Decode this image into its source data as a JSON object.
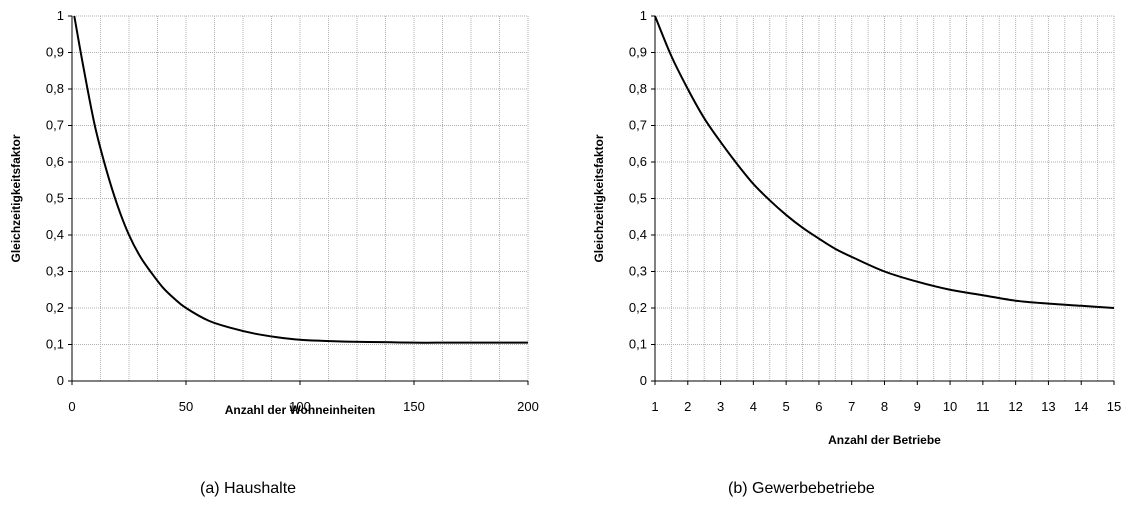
{
  "chart_data": [
    {
      "type": "line",
      "caption": "(a) Haushalte",
      "xlabel": "Anzahl der Wohneinheiten",
      "ylabel": "Gleichzeitigkeitsfaktor",
      "xlim": [
        0,
        200
      ],
      "ylim": [
        0,
        1
      ],
      "xticks": [
        0,
        50,
        100,
        150,
        200
      ],
      "xtick_labels": [
        "0",
        "50",
        "100",
        "150",
        "200"
      ],
      "yticks": [
        0,
        0.1,
        0.2,
        0.3,
        0.4,
        0.5,
        0.6,
        0.7,
        0.8,
        0.9,
        1
      ],
      "ytick_labels": [
        "0",
        "0,1",
        "0,2",
        "0,3",
        "0,4",
        "0,5",
        "0,6",
        "0,7",
        "0,8",
        "0,9",
        "1"
      ],
      "x_gridlines": [
        0,
        12.5,
        25,
        37.5,
        50,
        62.5,
        75,
        87.5,
        100,
        112.5,
        125,
        137.5,
        150,
        162.5,
        175,
        187.5,
        200
      ],
      "grid": true,
      "series": [
        {
          "color": "#000000",
          "x": [
            1,
            5,
            10,
            15,
            20,
            25,
            30,
            35,
            40,
            45,
            50,
            60,
            70,
            80,
            90,
            100,
            110,
            120,
            130,
            140,
            150,
            160,
            170,
            180,
            190,
            200
          ],
          "y": [
            1.0,
            0.86,
            0.7,
            0.58,
            0.48,
            0.4,
            0.34,
            0.295,
            0.255,
            0.225,
            0.2,
            0.165,
            0.145,
            0.13,
            0.12,
            0.113,
            0.11,
            0.108,
            0.107,
            0.106,
            0.105,
            0.105,
            0.105,
            0.105,
            0.105,
            0.105
          ]
        }
      ]
    },
    {
      "type": "line",
      "caption": "(b) Gewerbebetriebe",
      "xlabel": "Anzahl der Betriebe",
      "ylabel": "Gleichzeitigkeitsfaktor",
      "xlim": [
        1,
        15
      ],
      "ylim": [
        0,
        1
      ],
      "xticks": [
        1,
        2,
        3,
        4,
        5,
        6,
        7,
        8,
        9,
        10,
        11,
        12,
        13,
        14,
        15
      ],
      "xtick_labels": [
        "1",
        "2",
        "3",
        "4",
        "5",
        "6",
        "7",
        "8",
        "9",
        "10",
        "11",
        "12",
        "13",
        "14",
        "15"
      ],
      "yticks": [
        0,
        0.1,
        0.2,
        0.3,
        0.4,
        0.5,
        0.6,
        0.7,
        0.8,
        0.9,
        1
      ],
      "ytick_labels": [
        "0",
        "0,1",
        "0,2",
        "0,3",
        "0,4",
        "0,5",
        "0,6",
        "0,7",
        "0,8",
        "0,9",
        "1"
      ],
      "x_gridlines": [
        1,
        1.5,
        2,
        2.5,
        3,
        3.5,
        4,
        4.5,
        5,
        5.5,
        6,
        6.5,
        7,
        7.5,
        8,
        8.5,
        9,
        9.5,
        10,
        10.5,
        11,
        11.5,
        12,
        12.5,
        13,
        13.5,
        14,
        14.5,
        15
      ],
      "grid": true,
      "series": [
        {
          "color": "#000000",
          "x": [
            1,
            1.5,
            2,
            2.5,
            3,
            3.5,
            4,
            4.5,
            5,
            5.5,
            6,
            6.5,
            7,
            8,
            9,
            10,
            11,
            12,
            13,
            14,
            15
          ],
          "y": [
            1.0,
            0.89,
            0.8,
            0.72,
            0.655,
            0.595,
            0.54,
            0.495,
            0.455,
            0.42,
            0.39,
            0.362,
            0.34,
            0.3,
            0.272,
            0.25,
            0.235,
            0.22,
            0.212,
            0.206,
            0.2
          ]
        }
      ]
    }
  ]
}
